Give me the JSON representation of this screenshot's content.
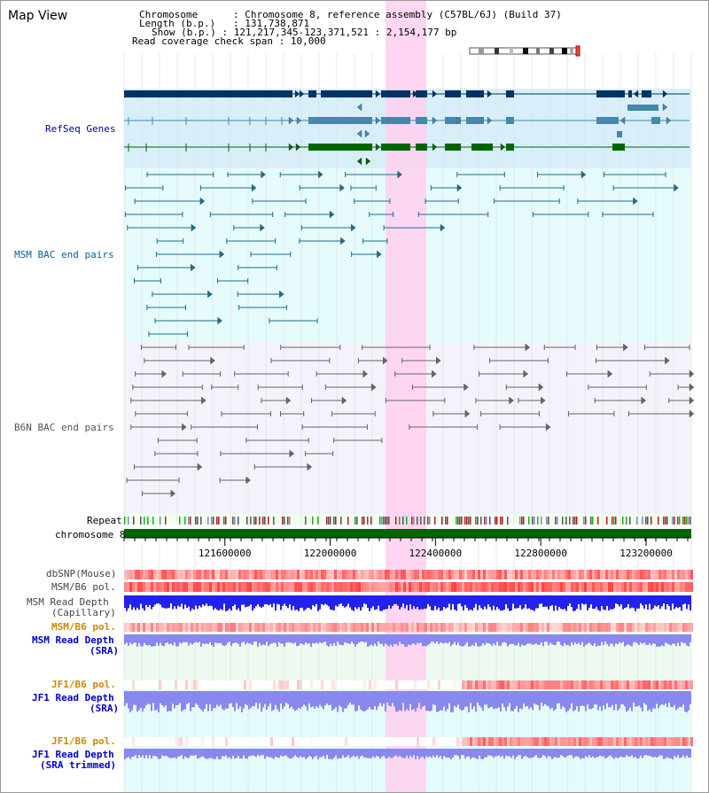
{
  "view_title": "Map View",
  "header": {
    "chromosome_label": "Chromosome",
    "chromosome_value": "Chromosome 8, reference assembly (C57BL/6J) (Build 37)",
    "length_label": "Length (b.p.)",
    "length_value": "131,738,871",
    "show_label": "Show (b.p.)",
    "show_value": "121,217,345-123,371,521 : 2,154,177 bp",
    "coverage_label": "Read coverage check span",
    "coverage_value": "10,000"
  },
  "tracks": {
    "refseq": {
      "label": "RefSeq Genes",
      "color": "#0000aa"
    },
    "msm_bac": {
      "label": "MSM BAC end pairs",
      "color": "#006699"
    },
    "b6n_bac": {
      "label": "B6N BAC end pairs",
      "color": "#555555"
    },
    "repeat": {
      "label": "Repeat"
    },
    "chromosome": {
      "label": "chromosome 8"
    },
    "dbsnp": {
      "label": "dbSNP(Mouse)"
    },
    "msm_b6_pol": {
      "label": "MSM/B6 pol."
    },
    "msm_read_depth_cap": {
      "label1": "MSM Read Depth",
      "label2": "(Capillary)"
    },
    "msm_b6_pol2": {
      "label": "MSM/B6 pol.",
      "color": "#cc8800"
    },
    "msm_read_depth_sra": {
      "label1": "MSM Read Depth",
      "label2": "(SRA)",
      "color": "#0000cc"
    },
    "jf1_b6_pol": {
      "label": "JF1/B6 pol.",
      "color": "#cc8800"
    },
    "jf1_read_depth_sra": {
      "label1": "JF1 Read Depth",
      "label2": "(SRA)",
      "color": "#0000cc"
    },
    "jf1_b6_pol2": {
      "label": "JF1/B6 pol.",
      "color": "#cc8800"
    },
    "jf1_read_depth_trim": {
      "label1": "JF1 Read Depth",
      "label2": "(SRA trimmed)",
      "color": "#0000cc"
    }
  },
  "axis": {
    "ticks": [
      121600000,
      122000000,
      122400000,
      122800000,
      123200000
    ],
    "tick_labels": [
      "121600000",
      "122000000",
      "122400000",
      "122800000",
      "123200000"
    ],
    "range": [
      121217345,
      123371521
    ]
  },
  "highlight": {
    "start": 122210000,
    "end": 122365000,
    "color": "#ffd0f0"
  },
  "colors": {
    "refseq_dark": "#003366",
    "refseq_mid": "#4488aa",
    "refseq_green": "#006600",
    "snp_red": "#ff3333",
    "depth_blue": "#2222ee",
    "depth_light": "#8888ee"
  }
}
